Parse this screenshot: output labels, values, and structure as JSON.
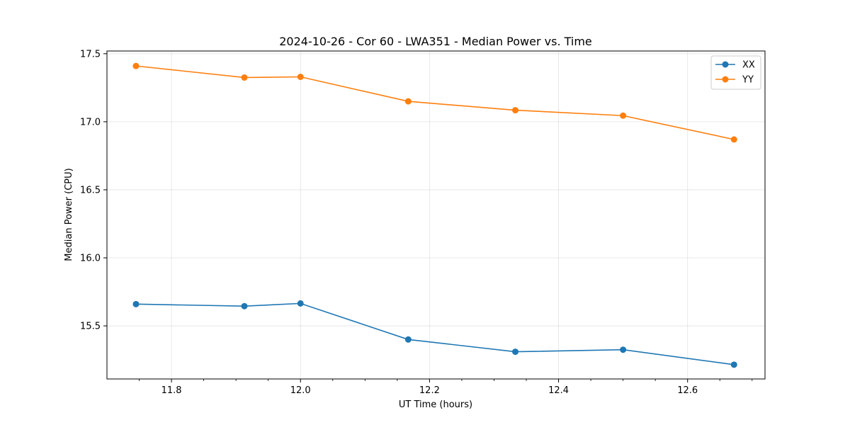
{
  "chart_data": {
    "type": "line",
    "title": "2024-10-26 - Cor 60 - LWA351 - Median Power vs. Time",
    "xlabel": "UT Time (hours)",
    "ylabel": "Median Power (CPU)",
    "xlim": [
      11.7,
      12.72
    ],
    "ylim": [
      15.11,
      17.52
    ],
    "grid": true,
    "legend_position": "top-right",
    "x_ticks": [
      11.8,
      12.0,
      12.2,
      12.4,
      12.6
    ],
    "x_tick_labels": [
      "11.8",
      "12.0",
      "12.2",
      "12.4",
      "12.6"
    ],
    "x_minor_ticks": [
      11.75,
      11.85,
      11.9,
      11.95,
      12.05,
      12.1,
      12.15,
      12.25,
      12.3,
      12.35,
      12.45,
      12.5,
      12.55,
      12.65,
      12.7
    ],
    "y_ticks": [
      15.5,
      16.0,
      16.5,
      17.0,
      17.5
    ],
    "y_tick_labels": [
      "15.5",
      "16.0",
      "16.5",
      "17.0",
      "17.5"
    ],
    "x": [
      11.745,
      11.913,
      12.0,
      12.167,
      12.333,
      12.5,
      12.672
    ],
    "series": [
      {
        "name": "XX",
        "color": "#1f77b4",
        "values": [
          15.66,
          15.645,
          15.665,
          15.4,
          15.31,
          15.325,
          15.215
        ]
      },
      {
        "name": "YY",
        "color": "#ff7f0e",
        "values": [
          17.41,
          17.325,
          17.33,
          17.15,
          17.085,
          17.045,
          16.87
        ]
      }
    ]
  }
}
